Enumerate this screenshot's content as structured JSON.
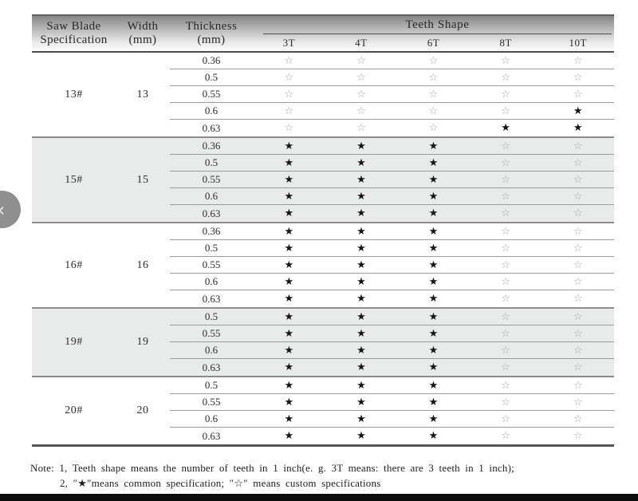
{
  "nav": {
    "prev_icon": "‹"
  },
  "header": {
    "col_spec_line1": "Saw Blade",
    "col_spec_line2": "Specification",
    "col_width_line1": "Width",
    "col_width_line2": "(mm)",
    "col_thickness_line1": "Thickness",
    "col_thickness_line2": "(mm)",
    "teeth_title": "Teeth Shape",
    "teeth_cols": [
      "3T",
      "4T",
      "6T",
      "8T",
      "10T"
    ]
  },
  "legend": {
    "common": "★",
    "custom": "☆"
  },
  "groups": [
    {
      "spec": "13#",
      "width": "13",
      "shaded": false,
      "rows": [
        {
          "thickness": "0.36",
          "teeth": [
            "☆",
            "☆",
            "☆",
            "☆",
            "☆"
          ]
        },
        {
          "thickness": "0.5",
          "teeth": [
            "☆",
            "☆",
            "☆",
            "☆",
            "☆"
          ]
        },
        {
          "thickness": "0.55",
          "teeth": [
            "☆",
            "☆",
            "☆",
            "☆",
            "☆"
          ]
        },
        {
          "thickness": "0.6",
          "teeth": [
            "☆",
            "☆",
            "☆",
            "☆",
            "★"
          ]
        },
        {
          "thickness": "0.63",
          "teeth": [
            "☆",
            "☆",
            "☆",
            "★",
            "★"
          ]
        }
      ]
    },
    {
      "spec": "15#",
      "width": "15",
      "shaded": true,
      "rows": [
        {
          "thickness": "0.36",
          "teeth": [
            "★",
            "★",
            "★",
            "☆",
            "☆"
          ]
        },
        {
          "thickness": "0.5",
          "teeth": [
            "★",
            "★",
            "★",
            "☆",
            "☆"
          ]
        },
        {
          "thickness": "0.55",
          "teeth": [
            "★",
            "★",
            "★",
            "☆",
            "☆"
          ]
        },
        {
          "thickness": "0.6",
          "teeth": [
            "★",
            "★",
            "★",
            "☆",
            "☆"
          ]
        },
        {
          "thickness": "0.63",
          "teeth": [
            "★",
            "★",
            "★",
            "☆",
            "☆"
          ]
        }
      ]
    },
    {
      "spec": "16#",
      "width": "16",
      "shaded": false,
      "rows": [
        {
          "thickness": "0.36",
          "teeth": [
            "★",
            "★",
            "★",
            "☆",
            "☆"
          ]
        },
        {
          "thickness": "0.5",
          "teeth": [
            "★",
            "★",
            "★",
            "☆",
            "☆"
          ]
        },
        {
          "thickness": "0.55",
          "teeth": [
            "★",
            "★",
            "★",
            "☆",
            "☆"
          ]
        },
        {
          "thickness": "0.6",
          "teeth": [
            "★",
            "★",
            "★",
            "☆",
            "☆"
          ]
        },
        {
          "thickness": "0.63",
          "teeth": [
            "★",
            "★",
            "★",
            "☆",
            "☆"
          ]
        }
      ]
    },
    {
      "spec": "19#",
      "width": "19",
      "shaded": true,
      "rows": [
        {
          "thickness": "0.5",
          "teeth": [
            "★",
            "★",
            "★",
            "☆",
            "☆"
          ]
        },
        {
          "thickness": "0.55",
          "teeth": [
            "★",
            "★",
            "★",
            "☆",
            "☆"
          ]
        },
        {
          "thickness": "0.6",
          "teeth": [
            "★",
            "★",
            "★",
            "☆",
            "☆"
          ]
        },
        {
          "thickness": "0.63",
          "teeth": [
            "★",
            "★",
            "★",
            "☆",
            "☆"
          ]
        }
      ]
    },
    {
      "spec": "20#",
      "width": "20",
      "shaded": false,
      "rows": [
        {
          "thickness": "0.5",
          "teeth": [
            "★",
            "★",
            "★",
            "☆",
            "☆"
          ]
        },
        {
          "thickness": "0.55",
          "teeth": [
            "★",
            "★",
            "★",
            "☆",
            "☆"
          ]
        },
        {
          "thickness": "0.6",
          "teeth": [
            "★",
            "★",
            "★",
            "☆",
            "☆"
          ]
        },
        {
          "thickness": "0.63",
          "teeth": [
            "★",
            "★",
            "★",
            "☆",
            "☆"
          ]
        }
      ]
    }
  ],
  "note": {
    "label": "Note:",
    "line1": "1, Teeth shape means the number of teeth in 1 inch(e. g. 3T  means: there are 3 teeth in 1 inch);",
    "line2": "2, ″★″means common specification; ″☆″ means custom specifications"
  },
  "colors": {
    "shaded_group_bg": "#e9eaea",
    "filled_star": "#131313",
    "open_star": "#a9a9a9",
    "bottom_bar": "#0d0d0d",
    "header_gradient_top": "#878787"
  }
}
